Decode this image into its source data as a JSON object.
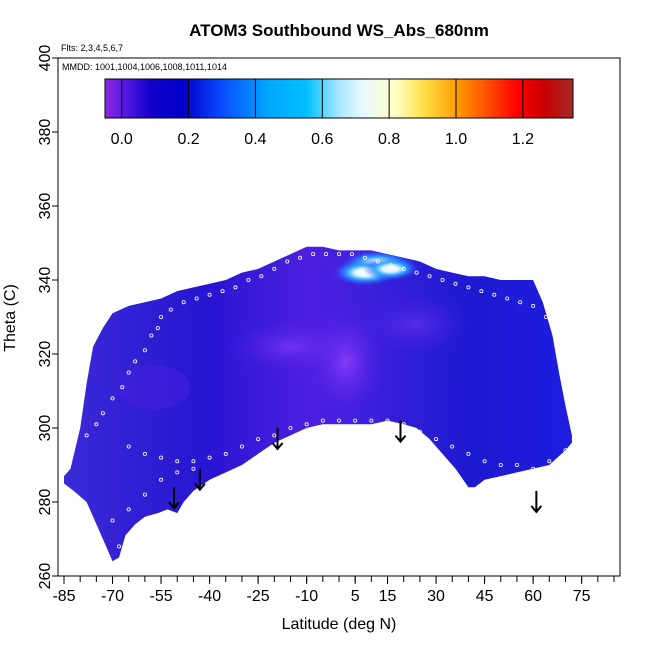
{
  "chart_data": {
    "type": "heatmap",
    "title": "ATOM3 Southbound WS_Abs_680nm",
    "flights_note": "Flts: 2,3,4,5,6,7",
    "dates_note": "MMDD: 1001,1004,1006,1008,1011,1014",
    "xlabel": "Latitude (deg N)",
    "ylabel": "Theta (C)",
    "xlim": [
      -85,
      85
    ],
    "ylim": [
      260,
      400
    ],
    "x_ticks": [
      -85,
      -70,
      -55,
      -40,
      -25,
      -10,
      5,
      15,
      30,
      45,
      60,
      75
    ],
    "x_tick_labels": [
      "-85",
      "-70",
      "-55",
      "-40",
      "-25",
      "-10",
      "5",
      "15",
      "30",
      "45",
      "60",
      "75"
    ],
    "x_minor_ticks": [
      -85,
      -80,
      -75,
      -70,
      -65,
      -60,
      -55,
      -50,
      -45,
      -40,
      -35,
      -30,
      -25,
      -20,
      -15,
      -10,
      -5,
      0,
      5,
      10,
      15,
      20,
      25,
      30,
      35,
      40,
      45,
      50,
      55,
      60,
      65,
      70,
      75,
      80,
      85
    ],
    "y_ticks": [
      260,
      280,
      300,
      320,
      340,
      360,
      380,
      400
    ],
    "y_tick_labels": [
      "260",
      "280",
      "300",
      "320",
      "340",
      "360",
      "380",
      "400"
    ],
    "colorbar": {
      "ticks": [
        0.0,
        0.2,
        0.4,
        0.6,
        0.8,
        1.0,
        1.2
      ],
      "tick_labels": [
        "0.0",
        "0.2",
        "0.4",
        "0.6",
        "0.8",
        "1.0",
        "1.2"
      ],
      "range": [
        -0.05,
        1.35
      ],
      "colors": [
        "#8b2be2",
        "#1a00c8",
        "#0000cd",
        "#1e90ff",
        "#00bfff",
        "#e0ffff",
        "#ffffe0",
        "#ffd700",
        "#ff8c00",
        "#ff0000",
        "#b22222"
      ]
    },
    "domain_outline": [
      [
        -85,
        287
      ],
      [
        -83,
        289
      ],
      [
        -80,
        300
      ],
      [
        -78,
        312
      ],
      [
        -76,
        322
      ],
      [
        -73,
        327
      ],
      [
        -70,
        331
      ],
      [
        -65,
        333
      ],
      [
        -60,
        334
      ],
      [
        -55,
        335
      ],
      [
        -50,
        337
      ],
      [
        -45,
        338
      ],
      [
        -40,
        339
      ],
      [
        -35,
        340
      ],
      [
        -30,
        342
      ],
      [
        -25,
        343
      ],
      [
        -20,
        345
      ],
      [
        -15,
        347
      ],
      [
        -10,
        349
      ],
      [
        -5,
        349
      ],
      [
        0,
        348
      ],
      [
        5,
        348
      ],
      [
        10,
        348
      ],
      [
        15,
        347
      ],
      [
        20,
        346
      ],
      [
        25,
        345
      ],
      [
        30,
        343
      ],
      [
        35,
        342
      ],
      [
        40,
        341
      ],
      [
        45,
        341
      ],
      [
        50,
        340
      ],
      [
        55,
        340
      ],
      [
        60,
        340
      ],
      [
        63,
        334
      ],
      [
        66,
        325
      ],
      [
        68,
        315
      ],
      [
        70,
        306
      ],
      [
        72,
        298
      ],
      [
        72,
        296
      ],
      [
        70,
        294
      ],
      [
        65,
        290
      ],
      [
        60,
        289
      ],
      [
        55,
        288
      ],
      [
        50,
        287
      ],
      [
        45,
        286
      ],
      [
        42,
        284
      ],
      [
        40,
        284
      ],
      [
        36,
        289
      ],
      [
        32,
        293
      ],
      [
        28,
        297
      ],
      [
        24,
        300
      ],
      [
        20,
        301
      ],
      [
        15,
        302
      ],
      [
        10,
        301
      ],
      [
        5,
        301
      ],
      [
        0,
        301
      ],
      [
        -5,
        301
      ],
      [
        -10,
        300
      ],
      [
        -15,
        298
      ],
      [
        -20,
        296
      ],
      [
        -25,
        293
      ],
      [
        -30,
        290
      ],
      [
        -35,
        288
      ],
      [
        -40,
        286
      ],
      [
        -45,
        283
      ],
      [
        -48,
        280
      ],
      [
        -50,
        277
      ],
      [
        -53,
        278
      ],
      [
        -56,
        277
      ],
      [
        -60,
        276
      ],
      [
        -63,
        274
      ],
      [
        -66,
        271
      ],
      [
        -68,
        265
      ],
      [
        -70,
        264
      ],
      [
        -72,
        268
      ],
      [
        -75,
        274
      ],
      [
        -78,
        280
      ],
      [
        -82,
        283
      ],
      [
        -85,
        285
      ]
    ],
    "high_values": [
      {
        "lat": 12,
        "theta": 344,
        "value": 0.75
      },
      {
        "lat": 8,
        "theta": 342,
        "value": 0.6
      },
      {
        "lat": 16,
        "theta": 343,
        "value": 0.45
      }
    ],
    "moderate_values": [
      {
        "lat": 0,
        "theta": 312,
        "value": 0.05
      },
      {
        "lat": -20,
        "theta": 318,
        "value": 0.03
      },
      {
        "lat": 20,
        "theta": 320,
        "value": 0.08
      }
    ],
    "sample_points": [
      [
        -78,
        298
      ],
      [
        -75,
        301
      ],
      [
        -73,
        304
      ],
      [
        -70,
        308
      ],
      [
        -67,
        311
      ],
      [
        -65,
        315
      ],
      [
        -63,
        318
      ],
      [
        -60,
        321
      ],
      [
        -58,
        325
      ],
      [
        -56,
        327
      ],
      [
        -55,
        330
      ],
      [
        -52,
        332
      ],
      [
        -48,
        334
      ],
      [
        -44,
        335
      ],
      [
        -40,
        336
      ],
      [
        -36,
        337
      ],
      [
        -32,
        338
      ],
      [
        -28,
        340
      ],
      [
        -24,
        341
      ],
      [
        -20,
        343
      ],
      [
        -16,
        345
      ],
      [
        -12,
        346
      ],
      [
        -8,
        347
      ],
      [
        -4,
        347
      ],
      [
        0,
        347
      ],
      [
        4,
        347
      ],
      [
        8,
        346
      ],
      [
        12,
        345
      ],
      [
        16,
        344
      ],
      [
        20,
        343
      ],
      [
        24,
        342
      ],
      [
        28,
        341
      ],
      [
        32,
        340
      ],
      [
        36,
        339
      ],
      [
        40,
        338
      ],
      [
        44,
        337
      ],
      [
        48,
        336
      ],
      [
        52,
        335
      ],
      [
        56,
        334
      ],
      [
        60,
        333
      ],
      [
        64,
        330
      ],
      [
        -65,
        295
      ],
      [
        -60,
        293
      ],
      [
        -55,
        292
      ],
      [
        -50,
        291
      ],
      [
        -45,
        291
      ],
      [
        -40,
        292
      ],
      [
        -35,
        293
      ],
      [
        -30,
        295
      ],
      [
        -25,
        297
      ],
      [
        -20,
        298
      ],
      [
        -15,
        300
      ],
      [
        -10,
        301
      ],
      [
        -5,
        302
      ],
      [
        0,
        302
      ],
      [
        5,
        302
      ],
      [
        10,
        302
      ],
      [
        15,
        302
      ],
      [
        20,
        301
      ],
      [
        25,
        299
      ],
      [
        30,
        297
      ],
      [
        35,
        295
      ],
      [
        40,
        293
      ],
      [
        45,
        291
      ],
      [
        50,
        290
      ],
      [
        55,
        290
      ],
      [
        60,
        289
      ],
      [
        65,
        291
      ],
      [
        70,
        294
      ],
      [
        -70,
        275
      ],
      [
        -68,
        268
      ],
      [
        -65,
        278
      ],
      [
        -60,
        282
      ],
      [
        -55,
        286
      ],
      [
        -50,
        288
      ],
      [
        -45,
        289
      ]
    ],
    "arrows": [
      {
        "lat": -51,
        "theta": 284
      },
      {
        "lat": -43,
        "theta": 289
      },
      {
        "lat": -19,
        "theta": 300
      },
      {
        "lat": 19,
        "theta": 302
      },
      {
        "lat": 61,
        "theta": 283
      }
    ]
  }
}
